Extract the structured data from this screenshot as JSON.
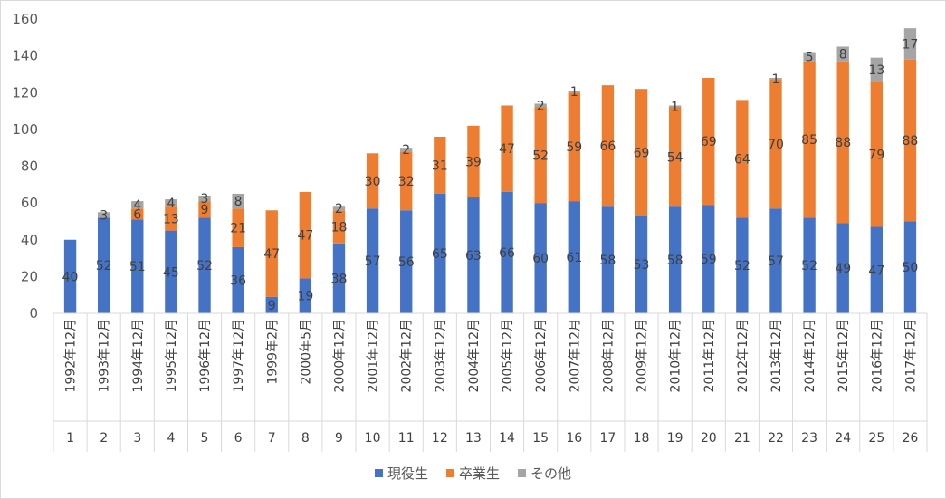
{
  "chart_data": {
    "type": "bar",
    "stacked": true,
    "categories": [
      "1992年12月",
      "1993年12月",
      "1994年12月",
      "1995年12月",
      "1996年12月",
      "1997年12月",
      "1999年2月",
      "2000年5月",
      "2000年12月",
      "2001年12月",
      "2002年12月",
      "2003年12月",
      "2004年12月",
      "2005年12月",
      "2006年12月",
      "2007年12月",
      "2008年12月",
      "2009年12月",
      "2010年12月",
      "2011年12月",
      "2012年12月",
      "2013年12月",
      "2014年12月",
      "2015年12月",
      "2016年12月",
      "2017年12月"
    ],
    "category_index": [
      "1",
      "2",
      "3",
      "4",
      "5",
      "6",
      "7",
      "8",
      "9",
      "10",
      "11",
      "12",
      "13",
      "14",
      "15",
      "16",
      "17",
      "18",
      "19",
      "20",
      "21",
      "22",
      "23",
      "24",
      "25",
      "26"
    ],
    "series": [
      {
        "name": "現役生",
        "color": "#4472c4",
        "values": [
          40,
          52,
          51,
          45,
          52,
          36,
          9,
          19,
          38,
          57,
          56,
          65,
          63,
          66,
          60,
          61,
          58,
          53,
          58,
          59,
          52,
          57,
          52,
          49,
          47,
          50
        ]
      },
      {
        "name": "卒業生",
        "color": "#ed7d31",
        "values": [
          0,
          0,
          6,
          13,
          9,
          21,
          47,
          47,
          18,
          30,
          32,
          31,
          39,
          47,
          52,
          59,
          66,
          69,
          54,
          69,
          64,
          70,
          85,
          88,
          79,
          88
        ]
      },
      {
        "name": "その他",
        "color": "#a5a5a5",
        "values": [
          0,
          3,
          4,
          4,
          3,
          8,
          0,
          0,
          2,
          0,
          2,
          0,
          0,
          0,
          2,
          1,
          0,
          0,
          1,
          0,
          0,
          1,
          5,
          8,
          13,
          17
        ]
      }
    ],
    "ylim": [
      0,
      160
    ],
    "yticks": [
      "0",
      "20",
      "40",
      "60",
      "80",
      "100",
      "120",
      "140",
      "160"
    ],
    "grid": false,
    "legend_position": "bottom"
  }
}
